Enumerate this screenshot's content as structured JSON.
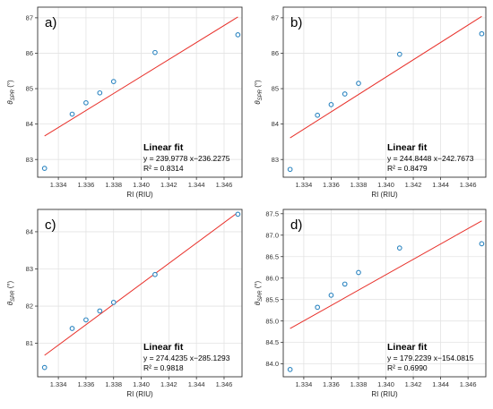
{
  "colors": {
    "point": "#2e86c1",
    "fit": "#e8302a",
    "grid": "#e3e3e3",
    "axis": "#333333"
  },
  "chart_data": [
    {
      "type": "scatter",
      "panel_label": "a)",
      "xlabel": "RI (RIU)",
      "ylabel_main": "θ",
      "ylabel_sub": "SPR",
      "ylabel_unit": " (°)",
      "x": [
        1.333,
        1.335,
        1.336,
        1.337,
        1.338,
        1.341,
        1.347
      ],
      "y": [
        82.75,
        84.28,
        84.6,
        84.88,
        85.2,
        86.02,
        86.52
      ],
      "fit": {
        "slope": 239.9778,
        "intercept": -236.2275
      },
      "xlim": [
        1.3325,
        1.3473
      ],
      "ylim": [
        82.5,
        87.3
      ],
      "xticks": [
        1.334,
        1.336,
        1.338,
        1.34,
        1.342,
        1.344,
        1.346
      ],
      "xtick_labels": [
        "1.334",
        "1.336",
        "1.338",
        "1.340",
        "1.342",
        "1.344",
        "1.346"
      ],
      "yticks": [
        83,
        84,
        85,
        86,
        87
      ],
      "ytick_labels": [
        "83",
        "84",
        "85",
        "86",
        "87"
      ],
      "grid": true,
      "legend_position": "bottom-right",
      "fit_title": "Linear fit",
      "fit_equation": "y = 239.9778 x−236.2275",
      "fit_r2": "R² = 0.8314"
    },
    {
      "type": "scatter",
      "panel_label": "b)",
      "xlabel": "RI (RIU)",
      "ylabel_main": "θ",
      "ylabel_sub": "SPR",
      "ylabel_unit": " (°)",
      "x": [
        1.333,
        1.335,
        1.336,
        1.337,
        1.338,
        1.341,
        1.347
      ],
      "y": [
        82.72,
        84.25,
        84.55,
        84.85,
        85.15,
        85.97,
        86.55
      ],
      "fit": {
        "slope": 244.8448,
        "intercept": -242.7673
      },
      "xlim": [
        1.3325,
        1.3473
      ],
      "ylim": [
        82.5,
        87.3
      ],
      "xticks": [
        1.334,
        1.336,
        1.338,
        1.34,
        1.342,
        1.344,
        1.346
      ],
      "xtick_labels": [
        "1.334",
        "1.336",
        "1.338",
        "1.340",
        "1.342",
        "1.344",
        "1.346"
      ],
      "yticks": [
        83,
        84,
        85,
        86,
        87
      ],
      "ytick_labels": [
        "83",
        "84",
        "85",
        "86",
        "87"
      ],
      "grid": true,
      "legend_position": "bottom-right",
      "fit_title": "Linear fit",
      "fit_equation": "y = 244.8448 x−242.7673",
      "fit_r2": "R² = 0.8479"
    },
    {
      "type": "scatter",
      "panel_label": "c)",
      "xlabel": "RI (RIU)",
      "ylabel_main": "θ",
      "ylabel_sub": "SPR",
      "ylabel_unit": " (°)",
      "x": [
        1.333,
        1.335,
        1.336,
        1.337,
        1.338,
        1.341,
        1.347
      ],
      "y": [
        80.35,
        81.4,
        81.63,
        81.87,
        82.1,
        82.85,
        84.47
      ],
      "fit": {
        "slope": 274.4235,
        "intercept": -285.1293
      },
      "xlim": [
        1.3325,
        1.3473
      ],
      "ylim": [
        80.1,
        84.6
      ],
      "xticks": [
        1.334,
        1.336,
        1.338,
        1.34,
        1.342,
        1.344,
        1.346
      ],
      "xtick_labels": [
        "1.334",
        "1.336",
        "1.338",
        "1.340",
        "1.342",
        "1.344",
        "1.346"
      ],
      "yticks": [
        81,
        82,
        83,
        84
      ],
      "ytick_labels": [
        "81",
        "82",
        "83",
        "84"
      ],
      "grid": true,
      "legend_position": "bottom-right",
      "fit_title": "Linear fit",
      "fit_equation": "y = 274.4235 x−285.1293",
      "fit_r2": "R² = 0.9818"
    },
    {
      "type": "scatter",
      "panel_label": "d)",
      "xlabel": "RI (RIU)",
      "ylabel_main": "θ",
      "ylabel_sub": "SPR",
      "ylabel_unit": " (°)",
      "x": [
        1.333,
        1.335,
        1.336,
        1.337,
        1.338,
        1.341,
        1.347
      ],
      "y": [
        83.87,
        85.32,
        85.6,
        85.86,
        86.13,
        86.7,
        86.8
      ],
      "fit": {
        "slope": 179.2239,
        "intercept": -154.0815
      },
      "xlim": [
        1.3325,
        1.3473
      ],
      "ylim": [
        83.7,
        87.6
      ],
      "xticks": [
        1.334,
        1.336,
        1.338,
        1.34,
        1.342,
        1.344,
        1.346
      ],
      "xtick_labels": [
        "1.334",
        "1.336",
        "1.338",
        "1.340",
        "1.342",
        "1.344",
        "1.346"
      ],
      "yticks": [
        84.0,
        84.5,
        85.0,
        85.5,
        86.0,
        86.5,
        87.0,
        87.5
      ],
      "ytick_labels": [
        "84.0",
        "84.5",
        "85.0",
        "85.5",
        "86.0",
        "86.5",
        "87.0",
        "87.5"
      ],
      "grid": true,
      "legend_position": "bottom-right",
      "fit_title": "Linear fit",
      "fit_equation": "y = 179.2239 x−154.0815",
      "fit_r2": "R² = 0.6990"
    }
  ]
}
